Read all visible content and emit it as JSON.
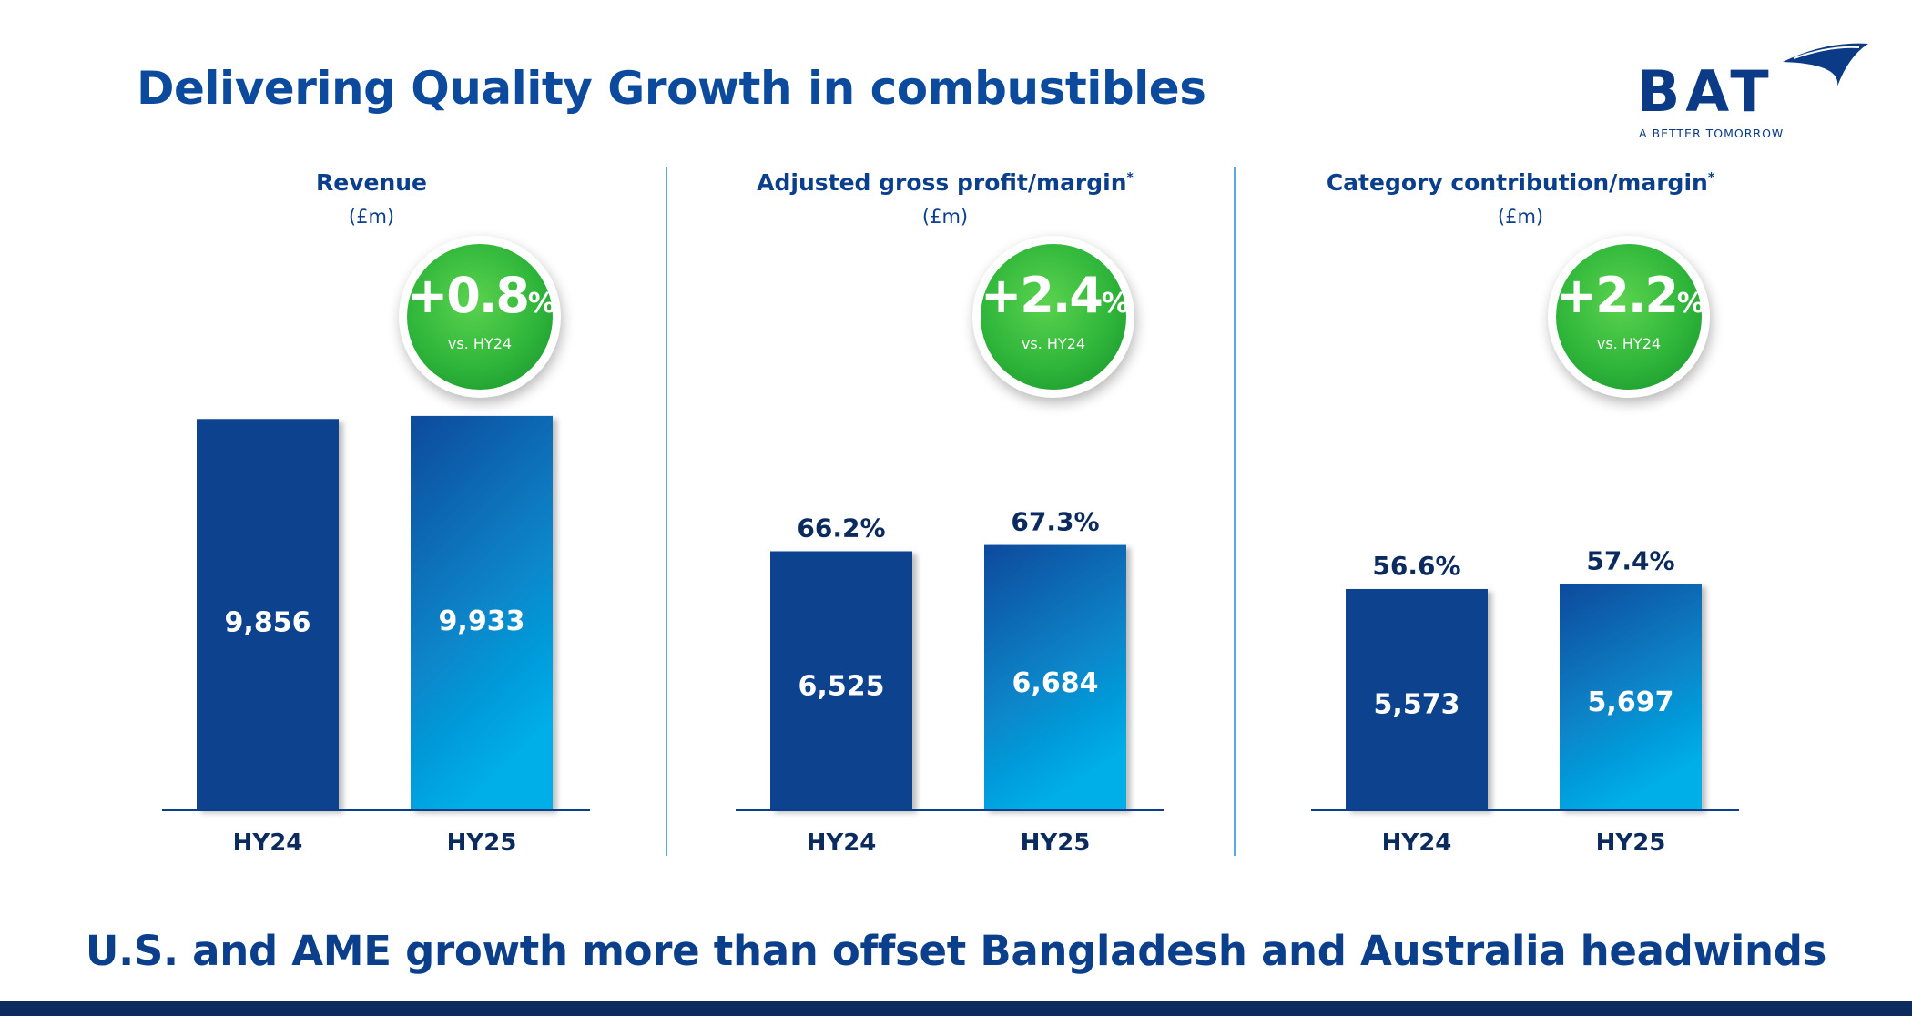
{
  "title": "Delivering Quality Growth in combustibles",
  "logo": {
    "brand": "BAT",
    "tagline": "A BETTER TOMORROW"
  },
  "footer": "U.S. and AME growth more than offset Bangladesh and Australia headwinds",
  "colors": {
    "bar_dark": "#07428f",
    "bar_light_top": "#0a4a9c",
    "bar_light_bottom": "#05aee8",
    "badge_green": "#2fb63a",
    "title_blue": "#0b4a9c"
  },
  "panels": [
    {
      "title": "Revenue",
      "unit": "(£m)",
      "badge": {
        "value": "+0.8",
        "suffix": "%",
        "sub": "vs. HY24"
      }
    },
    {
      "title": "Adjusted gross profit/margin",
      "title_mark": "*",
      "unit": "(£m)",
      "badge": {
        "value": "+2.4",
        "suffix": "%",
        "sub": "vs. HY24"
      }
    },
    {
      "title": "Category contribution/margin",
      "title_mark": "*",
      "unit": "(£m)",
      "badge": {
        "value": "+2.2",
        "suffix": "%",
        "sub": "vs. HY24"
      }
    }
  ],
  "chart_data": [
    {
      "type": "bar",
      "title": "Revenue",
      "ylabel": "(£m)",
      "categories": [
        "HY24",
        "HY25"
      ],
      "values": [
        9856,
        9933
      ],
      "value_labels": [
        "9,856",
        "9,933"
      ]
    },
    {
      "type": "bar",
      "title": "Adjusted gross profit/margin",
      "ylabel": "(£m)",
      "categories": [
        "HY24",
        "HY25"
      ],
      "values": [
        6525,
        6684
      ],
      "value_labels": [
        "6,525",
        "6,684"
      ],
      "margins": [
        "66.2%",
        "67.3%"
      ]
    },
    {
      "type": "bar",
      "title": "Category contribution/margin",
      "ylabel": "(£m)",
      "categories": [
        "HY24",
        "HY25"
      ],
      "values": [
        5573,
        5697
      ],
      "value_labels": [
        "5,573",
        "5,697"
      ],
      "margins": [
        "56.6%",
        "57.4%"
      ]
    }
  ]
}
